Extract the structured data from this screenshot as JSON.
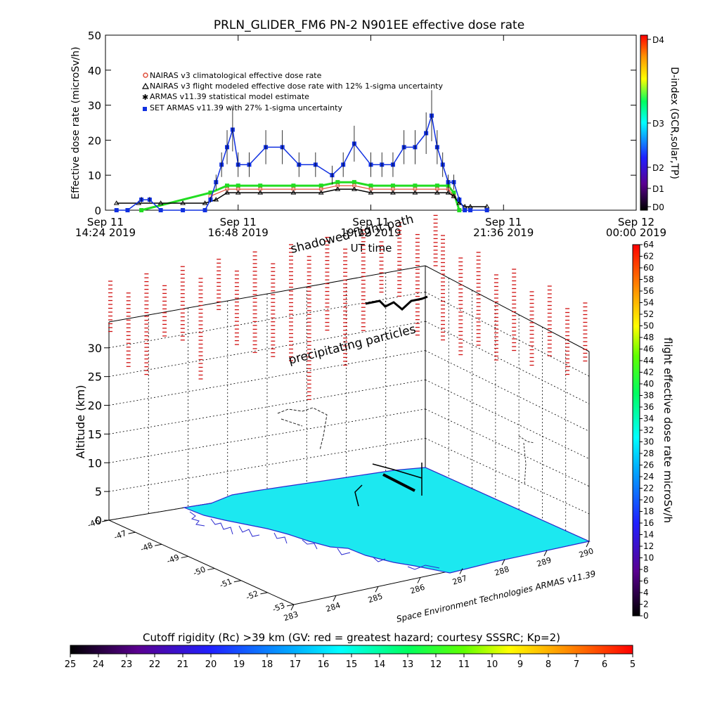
{
  "title": "PRLN_GLIDER_FM6 PN-2 N901EE effective dose rate",
  "top_chart": {
    "ylabel": "Effective dose rate (microSv/h)",
    "xlabel": "UT time",
    "yticks": [
      "0",
      "10",
      "20",
      "30",
      "40",
      "50"
    ],
    "xticks": [
      {
        "l1": "Sep 11",
        "l2": "14:24 2019"
      },
      {
        "l1": "Sep 11",
        "l2": "16:48 2019"
      },
      {
        "l1": "Sep 11",
        "l2": "19:12 2019"
      },
      {
        "l1": "Sep 11",
        "l2": "21:36 2019"
      },
      {
        "l1": "Sep 12",
        "l2": "00:00 2019"
      }
    ],
    "legend": [
      "NAIRAS v3 climatological effective dose rate",
      "NAIRAS v3 flight modeled effective dose rate with 12% 1-sigma uncertainty",
      "ARMAS v11.39 statistical model estimate",
      "SET ARMAS v11.39 with 27% 1-sigma uncertainty"
    ],
    "dindex_label": "D-index (GCR,solar,TP)",
    "dindex_ticks": [
      "D0",
      "D1",
      "D2",
      "D3",
      "D4"
    ],
    "colors": {
      "nairas_clim": "#e0503c",
      "nairas_flight": "#000000",
      "armas_model": "#22dd22",
      "set_armas": "#1030e0"
    }
  },
  "chart_data": {
    "type": "line",
    "title": "PRLN_GLIDER_FM6 PN-2 N901EE effective dose rate",
    "xlabel": "UT time",
    "ylabel": "Effective dose rate (microSv/h)",
    "ylim": [
      0,
      50
    ],
    "x_unit": "hours UT on Sep 11 2019",
    "xlim": [
      14.4,
      24.0
    ],
    "series": [
      {
        "name": "SET ARMAS v11.39 with 27% 1-sigma uncertainty",
        "x": [
          14.6,
          14.8,
          15.05,
          15.2,
          15.4,
          15.8,
          16.2,
          16.3,
          16.4,
          16.5,
          16.6,
          16.7,
          16.8,
          17.0,
          17.3,
          17.6,
          17.9,
          18.2,
          18.5,
          18.7,
          18.9,
          19.2,
          19.4,
          19.6,
          19.8,
          20.0,
          20.2,
          20.3,
          20.4,
          20.5,
          20.6,
          20.7,
          20.8,
          20.9,
          21.0,
          21.3
        ],
        "y": [
          0,
          0,
          3,
          3,
          0,
          0,
          0,
          3,
          8,
          13,
          18,
          23,
          13,
          13,
          18,
          18,
          13,
          13,
          10,
          13,
          19,
          13,
          13,
          13,
          18,
          18,
          22,
          27,
          18,
          13,
          8,
          8,
          3,
          0,
          0,
          0
        ]
      },
      {
        "name": "NAIRAS v3 flight modeled effective dose rate with 12% 1-sigma uncertainty",
        "x": [
          14.6,
          15.0,
          15.4,
          15.8,
          16.2,
          16.4,
          16.6,
          16.8,
          17.2,
          17.8,
          18.3,
          18.6,
          18.9,
          19.2,
          19.6,
          20.0,
          20.4,
          20.6,
          20.7,
          20.8,
          20.9,
          21.0,
          21.3
        ],
        "y": [
          2,
          2,
          2,
          2,
          2,
          3,
          5,
          5,
          5,
          5,
          5,
          6,
          6,
          5,
          5,
          5,
          5,
          5,
          4,
          2,
          1,
          1,
          1
        ]
      },
      {
        "name": "NAIRAS v3 climatological effective dose rate",
        "x": [
          16.3,
          16.6,
          16.8,
          17.2,
          17.8,
          18.3,
          18.6,
          18.9,
          19.2,
          19.6,
          20.0,
          20.4,
          20.6,
          20.7
        ],
        "y": [
          4,
          6,
          6,
          6,
          6,
          6,
          7,
          7,
          6,
          6,
          6,
          6,
          6,
          4
        ]
      },
      {
        "name": "ARMAS v11.39 statistical model estimate",
        "x": [
          15.05,
          16.3,
          16.6,
          16.8,
          17.2,
          17.8,
          18.3,
          18.6,
          18.9,
          19.2,
          19.6,
          20.0,
          20.4,
          20.6,
          20.7,
          20.8
        ],
        "y": [
          0,
          5,
          7,
          7,
          7,
          7,
          7,
          8,
          8,
          7,
          7,
          7,
          7,
          7,
          5,
          0
        ]
      }
    ]
  },
  "map3d": {
    "ylabel": "Altitude (km)",
    "zticks": [
      "0",
      "5",
      "10",
      "15",
      "20",
      "25",
      "30"
    ],
    "lat_ticks": [
      "-46",
      "-47",
      "-48",
      "-49",
      "-50",
      "-51",
      "-52",
      "-53"
    ],
    "lon_ticks": [
      "283",
      "284",
      "285",
      "286",
      "287",
      "288",
      "289",
      "290"
    ],
    "annotation_shadow": "shadowed flight path",
    "annotation_precip": "precipitating particles",
    "credit": "Space Environment Technologies ARMAS v11.39",
    "dose_colorbar_label": "flight effective dose rate microSv/h",
    "dose_colorbar_ticks": [
      "0",
      "2",
      "4",
      "6",
      "8",
      "10",
      "12",
      "14",
      "16",
      "18",
      "20",
      "22",
      "24",
      "26",
      "28",
      "30",
      "32",
      "34",
      "36",
      "38",
      "40",
      "42",
      "44",
      "46",
      "48",
      "50",
      "52",
      "54",
      "56",
      "58",
      "60",
      "62",
      "64"
    ]
  },
  "cutoff": {
    "label": "Cutoff rigidity (Rc) >39 km (GV: red = greatest hazard; courtesy SSSRC; Kp=2)",
    "ticks": [
      "25",
      "24",
      "23",
      "22",
      "21",
      "20",
      "19",
      "18",
      "17",
      "16",
      "15",
      "14",
      "13",
      "12",
      "11",
      "10",
      "9",
      "8",
      "7",
      "6",
      "5"
    ]
  }
}
